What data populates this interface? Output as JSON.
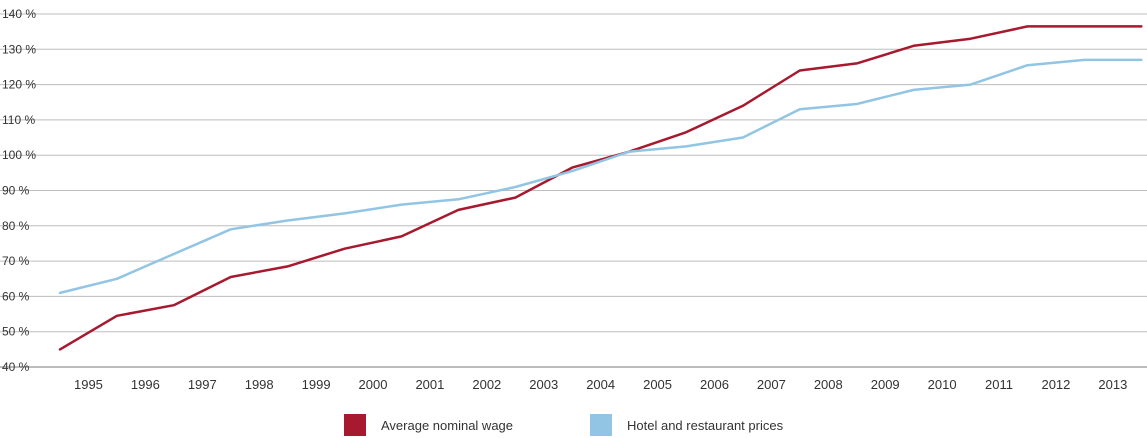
{
  "chart_data": {
    "type": "line",
    "categories": [
      "1995",
      "1996",
      "1997",
      "1998",
      "1999",
      "2000",
      "2001",
      "2002",
      "2003",
      "2004",
      "2005",
      "2006",
      "2007",
      "2008",
      "2009",
      "2010",
      "2011",
      "2012",
      "2013"
    ],
    "x": [
      1994.5,
      1995.5,
      1996.5,
      1997.5,
      1998.5,
      1999.5,
      2000.5,
      2001.5,
      2002.5,
      2003.5,
      2004.5,
      2005.5,
      2006.5,
      2007.5,
      2008.5,
      2009.5,
      2010.5,
      2011.5,
      2012.5,
      2013.5
    ],
    "series": [
      {
        "name": "Average nominal wage",
        "color": "#a6192e",
        "values": [
          45,
          54.5,
          57.5,
          65.5,
          68.5,
          73.5,
          77,
          84.5,
          88,
          96.5,
          101,
          106.5,
          114,
          124,
          126,
          131,
          133,
          136.5,
          136.5,
          136.5
        ]
      },
      {
        "name": "Hotel and restaurant prices",
        "color": "#92c5e4",
        "values": [
          61,
          65,
          72,
          79,
          81.5,
          83.5,
          86,
          87.5,
          91,
          95.5,
          101,
          102.5,
          105,
          113,
          114.5,
          118.5,
          120,
          125.5,
          127,
          127
        ]
      }
    ],
    "y_ticks": [
      "40 %",
      "50 %",
      "60 %",
      "70 %",
      "80 %",
      "90 %",
      "100 %",
      "110 %",
      "120 %",
      "130 %",
      "140 %"
    ],
    "ylim": [
      40,
      140
    ],
    "xlim": [
      1994.5,
      2013.6
    ],
    "grid": true,
    "legend_position": "bottom-center",
    "title": "",
    "xlabel": "",
    "ylabel": ""
  }
}
